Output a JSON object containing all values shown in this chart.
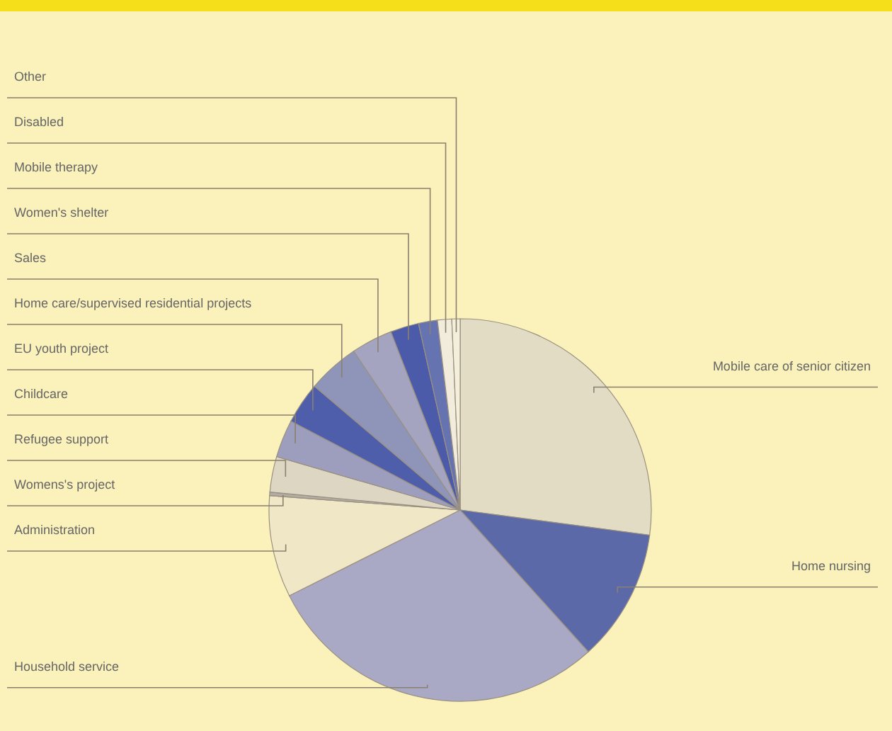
{
  "chart_data": {
    "type": "pie",
    "categories": [
      "Mobile care of senior citizen",
      "Home nursing",
      "Household service",
      "Administration",
      "Womens's project",
      "Refugee support",
      "Childcare",
      "EU youth project",
      "Home care/supervised residential projects",
      "Sales",
      "Women's shelter",
      "Mobile therapy",
      "Disabled",
      "Other"
    ],
    "values": [
      27.1,
      11.2,
      29.3,
      8.6,
      0.3,
      3.0,
      3.2,
      3.5,
      4.4,
      3.5,
      2.4,
      1.6,
      1.2,
      0.7
    ],
    "colors": [
      "#e3dcc4",
      "#5b69a9",
      "#a9a9c5",
      "#efe7c6",
      "#b3aca3",
      "#ddd6c2",
      "#9d9dbd",
      "#4f5eab",
      "#8f94b9",
      "#a4a4c0",
      "#4b5aa9",
      "#6673b1",
      "#f1ecdc",
      "#f4efdb"
    ]
  }
}
